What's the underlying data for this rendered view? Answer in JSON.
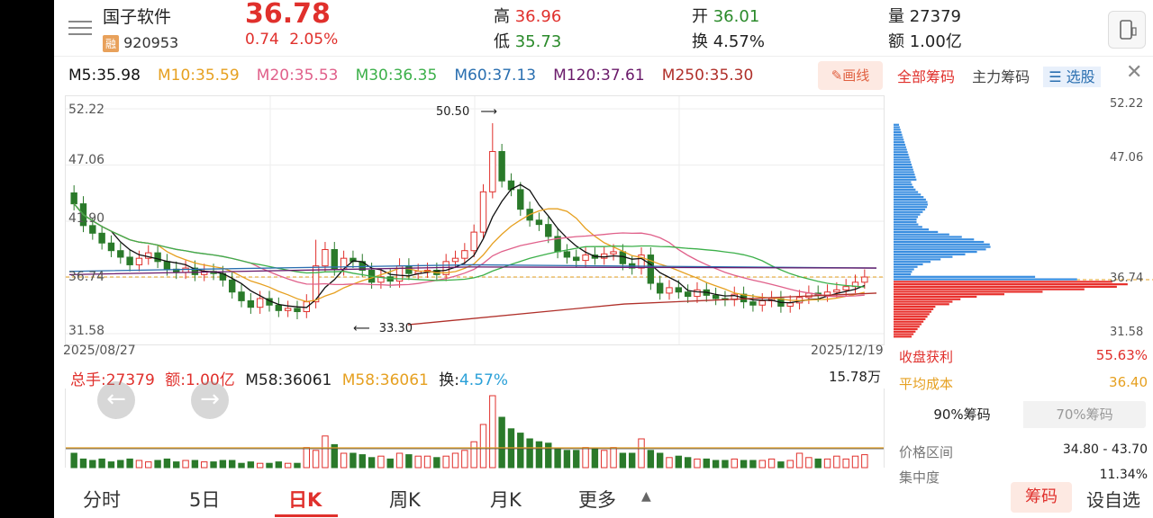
{
  "stock": {
    "name": "国子软件",
    "rz_badge": "融",
    "code": "920953",
    "price": "36.78",
    "change": "0.74",
    "change_pct": "2.05%",
    "high_label": "高",
    "high": "36.96",
    "low_label": "低",
    "low": "35.73",
    "open_label": "开",
    "open": "36.01",
    "turnover_label": "换",
    "turnover": "4.57%",
    "volume_label": "量",
    "volume": "27379",
    "amount_label": "额",
    "amount": "1.00亿"
  },
  "ma_legend": [
    {
      "text": "M5:35.98",
      "color": "#111111"
    },
    {
      "text": "M10:35.59",
      "color": "#e6a020"
    },
    {
      "text": "M20:35.53",
      "color": "#e0608a"
    },
    {
      "text": "M30:36.35",
      "color": "#3cb04a"
    },
    {
      "text": "M60:37.13",
      "color": "#2a6fb0"
    },
    {
      "text": "M120:37.61",
      "color": "#6a1a6a"
    },
    {
      "text": "M250:35.30",
      "color": "#b0302a"
    }
  ],
  "draw_button": "画线",
  "price_axis": [
    "52.22",
    "47.06",
    "41.90",
    "36.74",
    "31.58"
  ],
  "date_start": "2025/08/27",
  "date_end": "2025/12/19",
  "annotations": {
    "high": "50.50",
    "low": "33.30"
  },
  "volume_legend": {
    "total": "总手:27379",
    "amount": "额:1.00亿",
    "m58": "M58:36061",
    "m58b": "M58:36061",
    "turnover_label": "换:",
    "turnover": "4.57%",
    "max": "15.78万"
  },
  "tabs": [
    "分时",
    "5日",
    "日K",
    "周K",
    "月K",
    "更多"
  ],
  "active_tab": "日K",
  "right_panel": {
    "tab_all": "全部筹码",
    "tab_main": "主力筹码",
    "tab_select": "选股",
    "axis": [
      "52.22",
      "47.06",
      "36.74",
      "31.58"
    ],
    "profit_label": "收盘获利",
    "profit_value": "55.63%",
    "avg_cost_label": "平均成本",
    "avg_cost_value": "36.40",
    "pct90": "90%筹码",
    "pct70": "70%筹码",
    "range_label": "价格区间",
    "range_value": "34.80 - 43.70",
    "conc_label": "集中度",
    "conc_value": "11.34%"
  },
  "bottom_buttons": {
    "chouma": "筹码",
    "settings": "设自选"
  },
  "colors": {
    "up": "#e0302c",
    "down": "#2a7a2a",
    "accent": "#e0302c"
  },
  "chart_data": {
    "type": "candlestick",
    "x_start": "2025/08/27",
    "x_end": "2025/12/19",
    "ylim": [
      31.58,
      52.22
    ],
    "high": 50.5,
    "low": 33.3,
    "last_close": 36.78,
    "ma": {
      "M5": 35.98,
      "M10": 35.59,
      "M20": 35.53,
      "M30": 36.35,
      "M60": 37.13,
      "M120": 37.61,
      "M250": 35.3
    }
  }
}
